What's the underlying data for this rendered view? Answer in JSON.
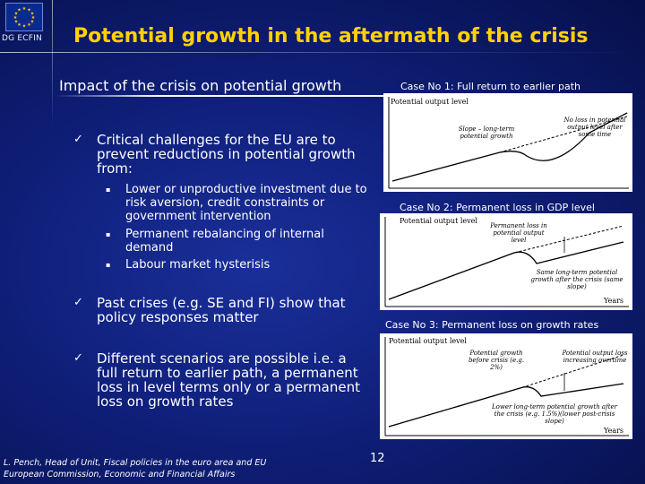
{
  "header": {
    "logo": "eu-flag-icon",
    "org": "DG ECFIN",
    "title": "Potential growth in the aftermath of the crisis",
    "subtitle": "Impact of the crisis on potential growth"
  },
  "bullets": [
    {
      "text": "Critical challenges for the EU are to prevent reductions in potential growth from:",
      "subs": [
        "Lower or unproductive investment due to risk aversion, credit constraints or government intervention",
        "Permanent rebalancing of internal demand",
        "Labour market hysterisis"
      ]
    },
    {
      "text": "Past crises (e.g. SE and FI) show that policy responses matter"
    },
    {
      "text": "Different scenarios are possible i.e. a full return to earlier path, a permanent loss in level terms only or a permanent loss on growth rates"
    }
  ],
  "footer": {
    "line1": "L. Pench, Head of Unit, Fiscal policies in the euro area and EU",
    "line2": "European Commission, Economic and Financial Affairs",
    "page": "12"
  },
  "cases": [
    {
      "label": "Case No 1: Full return to earlier path",
      "ylabel": "Potential output level",
      "ann1": "Slope – long-term potential growth",
      "ann2": "No loss in potential output level after some time"
    },
    {
      "label": "Case No 2: Permanent loss in GDP level",
      "ylabel": "Potential output level",
      "ann1": "Permanent loss in potential output level",
      "ann2": "Same long-term potential growth after the crisis (same slope)",
      "xlabel": "Years"
    },
    {
      "label": "Case No 3: Permanent loss on growth rates",
      "ylabel": "Potential output level",
      "ann1": "Potential growth before crisis (e.g. 2%)",
      "ann2": "Potential output loss increasing overtime",
      "ann3": "Lower long-term potential growth after the crisis (e.g. 1.5%)(lower post-crisis slope)",
      "xlabel": "Years"
    }
  ],
  "colors": {
    "title": "#ffd200",
    "background": "#0f1f7a"
  }
}
